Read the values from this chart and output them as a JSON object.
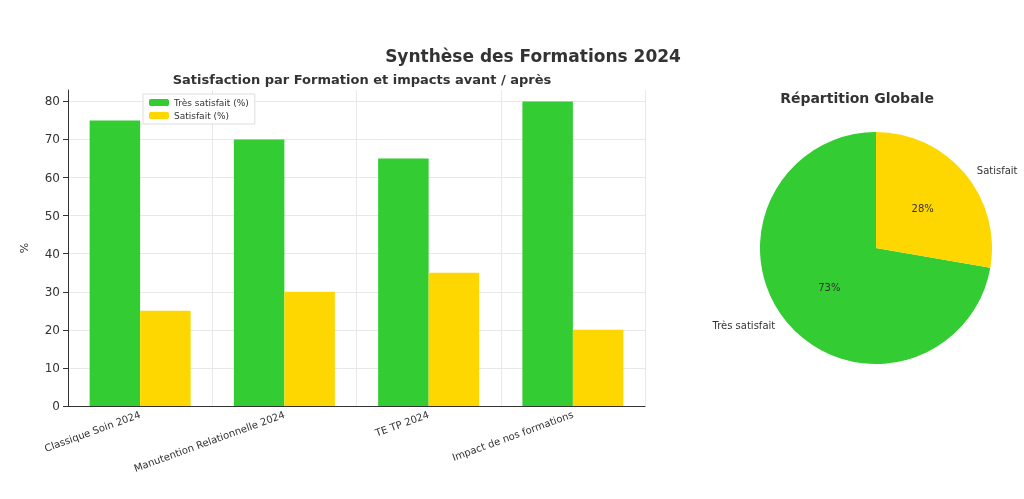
{
  "chart_data": [
    {
      "type": "bar",
      "title": "Synthèse des Formations 2024",
      "subtitle": "Satisfaction par Formation et impacts avant / après",
      "ylabel": "%",
      "categories": [
        "Classique Soin 2024",
        "Manutention Relationnelle 2024",
        "TE TP 2024",
        "Impact de nos formations"
      ],
      "series": [
        {
          "name": "Très satisfait (%)",
          "color": "#33cc33",
          "values": [
            75,
            70,
            65,
            80
          ]
        },
        {
          "name": "Satisfait (%)",
          "color": "#ffd700",
          "values": [
            25,
            30,
            35,
            20
          ]
        }
      ],
      "ylim": [
        0,
        83
      ],
      "yticks": [
        0,
        10,
        20,
        30,
        40,
        50,
        60,
        70,
        80
      ],
      "grid": true,
      "legend": "top left"
    },
    {
      "type": "pie",
      "title": "Répartition Globale",
      "categories": [
        "Très satisfait",
        "Satisfait"
      ],
      "values": [
        73,
        28
      ],
      "colors": [
        "#33cc33",
        "#ffd700"
      ],
      "value_labels": [
        "73%",
        "28%"
      ]
    }
  ]
}
